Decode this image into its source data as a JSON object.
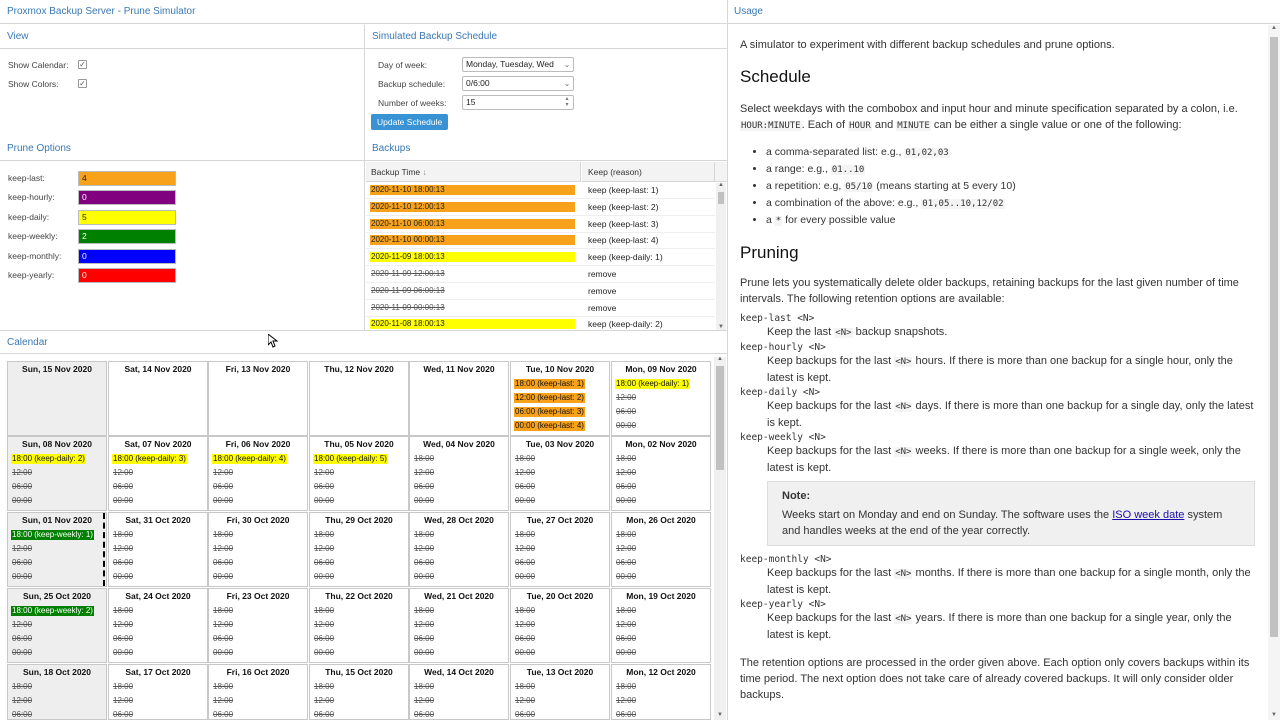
{
  "header": {
    "title": "Proxmox Backup Server - Prune Simulator",
    "usage_title": "Usage"
  },
  "view": {
    "title": "View",
    "show_calendar_label": "Show Calendar:",
    "show_colors_label": "Show Colors:",
    "show_calendar": true,
    "show_colors": true
  },
  "schedule": {
    "title": "Simulated Backup Schedule",
    "day_of_week_label": "Day of week:",
    "day_of_week_value": "Monday, Tuesday, Wed",
    "backup_schedule_label": "Backup schedule:",
    "backup_schedule_value": "0/6:00",
    "num_weeks_label": "Number of weeks:",
    "num_weeks_value": "15",
    "update_button": "Update Schedule"
  },
  "prune_options": {
    "title": "Prune Options",
    "items": [
      {
        "label": "keep-last:",
        "value": "4",
        "color": "#f7a21a"
      },
      {
        "label": "keep-hourly:",
        "value": "0",
        "color": "#800080"
      },
      {
        "label": "keep-daily:",
        "value": "5",
        "color": "#ffff00"
      },
      {
        "label": "keep-weekly:",
        "value": "2",
        "color": "#008000"
      },
      {
        "label": "keep-monthly:",
        "value": "0",
        "color": "#0000ff"
      },
      {
        "label": "keep-yearly:",
        "value": "0",
        "color": "#ff0000"
      }
    ]
  },
  "backups": {
    "title": "Backups",
    "col_time": "Backup Time",
    "col_keep": "Keep (reason)",
    "rows": [
      {
        "time": "2020-11-10 18:00:13",
        "keep": "keep (keep-last: 1)",
        "color": "#f7a21a",
        "removed": false
      },
      {
        "time": "2020-11-10 12:00:13",
        "keep": "keep (keep-last: 2)",
        "color": "#f7a21a",
        "removed": false
      },
      {
        "time": "2020-11-10 06:00:13",
        "keep": "keep (keep-last: 3)",
        "color": "#f7a21a",
        "removed": false
      },
      {
        "time": "2020-11-10 00:00:13",
        "keep": "keep (keep-last: 4)",
        "color": "#f7a21a",
        "removed": false
      },
      {
        "time": "2020-11-09 18:00:13",
        "keep": "keep (keep-daily: 1)",
        "color": "#ffff00",
        "removed": false
      },
      {
        "time": "2020-11-09 12:00:13",
        "keep": "remove",
        "color": "",
        "removed": true
      },
      {
        "time": "2020-11-09 06:00:13",
        "keep": "remove",
        "color": "",
        "removed": true
      },
      {
        "time": "2020-11-09 00:00:13",
        "keep": "remove",
        "color": "",
        "removed": true
      },
      {
        "time": "2020-11-08 18:00:13",
        "keep": "keep (keep-daily: 2)",
        "color": "#ffff00",
        "removed": false
      }
    ]
  },
  "calendar": {
    "title": "Calendar",
    "weeks": [
      [
        {
          "day": "Sun, 15 Nov 2020",
          "entries": []
        },
        {
          "day": "Sat, 14 Nov 2020",
          "entries": []
        },
        {
          "day": "Fri, 13 Nov 2020",
          "entries": []
        },
        {
          "day": "Thu, 12 Nov 2020",
          "entries": []
        },
        {
          "day": "Wed, 11 Nov 2020",
          "entries": []
        },
        {
          "day": "Tue, 10 Nov 2020",
          "entries": [
            {
              "text": "18:00 (keep-last: 1)",
              "color": "#f7a21a"
            },
            {
              "text": "12:00 (keep-last: 2)",
              "color": "#f7a21a"
            },
            {
              "text": "06:00 (keep-last: 3)",
              "color": "#f7a21a"
            },
            {
              "text": "00:00 (keep-last: 4)",
              "color": "#f7a21a"
            }
          ]
        },
        {
          "day": "Mon, 09 Nov 2020",
          "entries": [
            {
              "text": "18:00 (keep-daily: 1)",
              "color": "#ffff00"
            },
            {
              "text": "12:00",
              "color": ""
            },
            {
              "text": "06:00",
              "color": ""
            },
            {
              "text": "00:00",
              "color": ""
            }
          ]
        }
      ],
      [
        {
          "day": "Sun, 08 Nov 2020",
          "entries": [
            {
              "text": "18:00 (keep-daily: 2)",
              "color": "#ffff00"
            },
            {
              "text": "12:00",
              "color": ""
            },
            {
              "text": "06:00",
              "color": ""
            },
            {
              "text": "00:00",
              "color": ""
            }
          ]
        },
        {
          "day": "Sat, 07 Nov 2020",
          "entries": [
            {
              "text": "18:00 (keep-daily: 3)",
              "color": "#ffff00"
            },
            {
              "text": "12:00",
              "color": ""
            },
            {
              "text": "06:00",
              "color": ""
            },
            {
              "text": "00:00",
              "color": ""
            }
          ]
        },
        {
          "day": "Fri, 06 Nov 2020",
          "entries": [
            {
              "text": "18:00 (keep-daily: 4)",
              "color": "#ffff00"
            },
            {
              "text": "12:00",
              "color": ""
            },
            {
              "text": "06:00",
              "color": ""
            },
            {
              "text": "00:00",
              "color": ""
            }
          ]
        },
        {
          "day": "Thu, 05 Nov 2020",
          "entries": [
            {
              "text": "18:00 (keep-daily: 5)",
              "color": "#ffff00"
            },
            {
              "text": "12:00",
              "color": ""
            },
            {
              "text": "06:00",
              "color": ""
            },
            {
              "text": "00:00",
              "color": ""
            }
          ]
        },
        {
          "day": "Wed, 04 Nov 2020",
          "entries": [
            {
              "text": "18:00",
              "color": ""
            },
            {
              "text": "12:00",
              "color": ""
            },
            {
              "text": "06:00",
              "color": ""
            },
            {
              "text": "00:00",
              "color": ""
            }
          ]
        },
        {
          "day": "Tue, 03 Nov 2020",
          "entries": [
            {
              "text": "18:00",
              "color": ""
            },
            {
              "text": "12:00",
              "color": ""
            },
            {
              "text": "06:00",
              "color": ""
            },
            {
              "text": "00:00",
              "color": ""
            }
          ]
        },
        {
          "day": "Mon, 02 Nov 2020",
          "entries": [
            {
              "text": "18:00",
              "color": ""
            },
            {
              "text": "12:00",
              "color": ""
            },
            {
              "text": "06:00",
              "color": ""
            },
            {
              "text": "00:00",
              "color": ""
            }
          ]
        }
      ],
      [
        {
          "day": "Sun, 01 Nov 2020",
          "entries": [
            {
              "text": "18:00 (keep-weekly: 1)",
              "color": "#008000"
            },
            {
              "text": "12:00",
              "color": ""
            },
            {
              "text": "06:00",
              "color": ""
            },
            {
              "text": "00:00",
              "color": ""
            }
          ]
        },
        {
          "day": "Sat, 31 Oct 2020",
          "entries": [
            {
              "text": "18:00",
              "color": ""
            },
            {
              "text": "12:00",
              "color": ""
            },
            {
              "text": "06:00",
              "color": ""
            },
            {
              "text": "00:00",
              "color": ""
            }
          ]
        },
        {
          "day": "Fri, 30 Oct 2020",
          "entries": [
            {
              "text": "18:00",
              "color": ""
            },
            {
              "text": "12:00",
              "color": ""
            },
            {
              "text": "06:00",
              "color": ""
            },
            {
              "text": "00:00",
              "color": ""
            }
          ]
        },
        {
          "day": "Thu, 29 Oct 2020",
          "entries": [
            {
              "text": "18:00",
              "color": ""
            },
            {
              "text": "12:00",
              "color": ""
            },
            {
              "text": "06:00",
              "color": ""
            },
            {
              "text": "00:00",
              "color": ""
            }
          ]
        },
        {
          "day": "Wed, 28 Oct 2020",
          "entries": [
            {
              "text": "18:00",
              "color": ""
            },
            {
              "text": "12:00",
              "color": ""
            },
            {
              "text": "06:00",
              "color": ""
            },
            {
              "text": "00:00",
              "color": ""
            }
          ]
        },
        {
          "day": "Tue, 27 Oct 2020",
          "entries": [
            {
              "text": "18:00",
              "color": ""
            },
            {
              "text": "12:00",
              "color": ""
            },
            {
              "text": "06:00",
              "color": ""
            },
            {
              "text": "00:00",
              "color": ""
            }
          ]
        },
        {
          "day": "Mon, 26 Oct 2020",
          "entries": [
            {
              "text": "18:00",
              "color": ""
            },
            {
              "text": "12:00",
              "color": ""
            },
            {
              "text": "06:00",
              "color": ""
            },
            {
              "text": "00:00",
              "color": ""
            }
          ]
        }
      ],
      [
        {
          "day": "Sun, 25 Oct 2020",
          "entries": [
            {
              "text": "18:00 (keep-weekly: 2)",
              "color": "#008000"
            },
            {
              "text": "12:00",
              "color": ""
            },
            {
              "text": "06:00",
              "color": ""
            },
            {
              "text": "00:00",
              "color": ""
            }
          ]
        },
        {
          "day": "Sat, 24 Oct 2020",
          "entries": [
            {
              "text": "18:00",
              "color": ""
            },
            {
              "text": "12:00",
              "color": ""
            },
            {
              "text": "06:00",
              "color": ""
            },
            {
              "text": "00:00",
              "color": ""
            }
          ]
        },
        {
          "day": "Fri, 23 Oct 2020",
          "entries": [
            {
              "text": "18:00",
              "color": ""
            },
            {
              "text": "12:00",
              "color": ""
            },
            {
              "text": "06:00",
              "color": ""
            },
            {
              "text": "00:00",
              "color": ""
            }
          ]
        },
        {
          "day": "Thu, 22 Oct 2020",
          "entries": [
            {
              "text": "18:00",
              "color": ""
            },
            {
              "text": "12:00",
              "color": ""
            },
            {
              "text": "06:00",
              "color": ""
            },
            {
              "text": "00:00",
              "color": ""
            }
          ]
        },
        {
          "day": "Wed, 21 Oct 2020",
          "entries": [
            {
              "text": "18:00",
              "color": ""
            },
            {
              "text": "12:00",
              "color": ""
            },
            {
              "text": "06:00",
              "color": ""
            },
            {
              "text": "00:00",
              "color": ""
            }
          ]
        },
        {
          "day": "Tue, 20 Oct 2020",
          "entries": [
            {
              "text": "18:00",
              "color": ""
            },
            {
              "text": "12:00",
              "color": ""
            },
            {
              "text": "06:00",
              "color": ""
            },
            {
              "text": "00:00",
              "color": ""
            }
          ]
        },
        {
          "day": "Mon, 19 Oct 2020",
          "entries": [
            {
              "text": "18:00",
              "color": ""
            },
            {
              "text": "12:00",
              "color": ""
            },
            {
              "text": "06:00",
              "color": ""
            },
            {
              "text": "00:00",
              "color": ""
            }
          ]
        }
      ],
      [
        {
          "day": "Sun, 18 Oct 2020",
          "entries": [
            {
              "text": "18:00",
              "color": ""
            },
            {
              "text": "12:00",
              "color": ""
            },
            {
              "text": "06:00",
              "color": ""
            }
          ]
        },
        {
          "day": "Sat, 17 Oct 2020",
          "entries": [
            {
              "text": "18:00",
              "color": ""
            },
            {
              "text": "12:00",
              "color": ""
            },
            {
              "text": "06:00",
              "color": ""
            }
          ]
        },
        {
          "day": "Fri, 16 Oct 2020",
          "entries": [
            {
              "text": "18:00",
              "color": ""
            },
            {
              "text": "12:00",
              "color": ""
            },
            {
              "text": "06:00",
              "color": ""
            }
          ]
        },
        {
          "day": "Thu, 15 Oct 2020",
          "entries": [
            {
              "text": "18:00",
              "color": ""
            },
            {
              "text": "12:00",
              "color": ""
            },
            {
              "text": "06:00",
              "color": ""
            }
          ]
        },
        {
          "day": "Wed, 14 Oct 2020",
          "entries": [
            {
              "text": "18:00",
              "color": ""
            },
            {
              "text": "12:00",
              "color": ""
            },
            {
              "text": "06:00",
              "color": ""
            }
          ]
        },
        {
          "day": "Tue, 13 Oct 2020",
          "entries": [
            {
              "text": "18:00",
              "color": ""
            },
            {
              "text": "12:00",
              "color": ""
            },
            {
              "text": "06:00",
              "color": ""
            }
          ]
        },
        {
          "day": "Mon, 12 Oct 2020",
          "entries": [
            {
              "text": "18:00",
              "color": ""
            },
            {
              "text": "12:00",
              "color": ""
            },
            {
              "text": "06:00",
              "color": ""
            }
          ]
        }
      ]
    ]
  },
  "usage": {
    "intro": "A simulator to experiment with different backup schedules and prune options.",
    "schedule_heading": "Schedule",
    "schedule_p1": "Select weekdays with the combobox and input hour and minute specification separated by a colon, i.e.",
    "schedule_code_hm": "HOUR:MINUTE",
    "schedule_p2a": ". Each of",
    "schedule_code_hour": "HOUR",
    "schedule_p2b": "and",
    "schedule_code_minute": "MINUTE",
    "schedule_p2c": "can be either a single value or one of the following:",
    "bullets": [
      {
        "text": "a comma-separated list: e.g.,",
        "code": "01,02,03",
        "after": ""
      },
      {
        "text": "a range: e.g.,",
        "code": "01..10",
        "after": ""
      },
      {
        "text": "a repetition: e.g,",
        "code": "05/10",
        "after": " (means starting at 5 every 10)"
      },
      {
        "text": "a combination of the above: e.g.,",
        "code": "01,05..10,12/02",
        "after": ""
      },
      {
        "text": "a",
        "code": "*",
        "after": " for every possible value"
      }
    ],
    "pruning_heading": "Pruning",
    "pruning_p": "Prune lets you systematically delete older backups, retaining backups for the last given number of time intervals. The following retention options are available:",
    "options": [
      {
        "opt": "keep-last <N>",
        "desc_a": "Keep the last",
        "desc_b": "backup snapshots."
      },
      {
        "opt": "keep-hourly <N>",
        "desc_a": "Keep backups for the last",
        "desc_b": "hours. If there is more than one backup for a single hour, only the latest is kept."
      },
      {
        "opt": "keep-daily <N>",
        "desc_a": "Keep backups for the last",
        "desc_b": "days. If there is more than one backup for a single day, only the latest is kept."
      },
      {
        "opt": "keep-weekly <N>",
        "desc_a": "Keep backups for the last",
        "desc_b": "weeks. If there is more than one backup for a single week, only the latest is kept."
      }
    ],
    "n_code": "<N>",
    "note_title": "Note:",
    "note_text_a": "Weeks start on Monday and end on Sunday. The software uses the",
    "note_link": "ISO week date",
    "note_text_b": "system and handles weeks at the end of the year correctly.",
    "options2": [
      {
        "opt": "keep-monthly <N>",
        "desc_a": "Keep backups for the last",
        "desc_b": "months. If there is more than one backup for a single month, only the latest is kept."
      },
      {
        "opt": "keep-yearly <N>",
        "desc_a": "Keep backups for the last",
        "desc_b": "years. If there is more than one backup for a single year, only the latest is kept."
      }
    ],
    "closing": "The retention options are processed in the order given above. Each option only covers backups within its time period. The next option does not take care of already covered backups. It will only consider older backups."
  }
}
